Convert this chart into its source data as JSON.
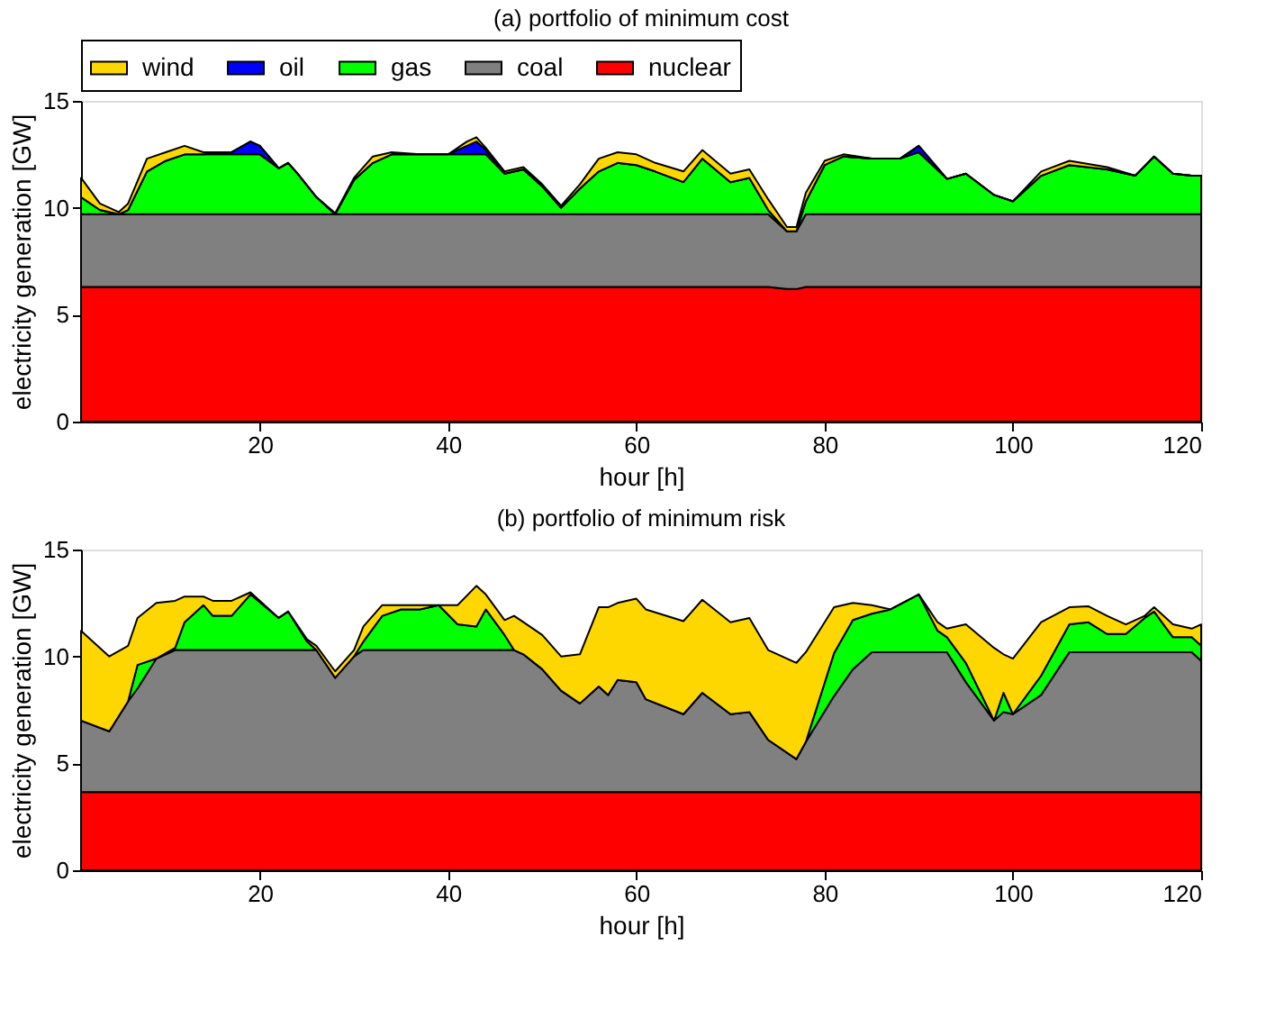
{
  "chart_data": [
    {
      "type": "area",
      "title": "(a) portfolio of minimum cost",
      "xlabel": "hour [h]",
      "ylabel": "electricity generation [GW]",
      "stacked": true,
      "legend": "top",
      "grid": false,
      "xlim": [
        1,
        120
      ],
      "xticks": [
        20,
        40,
        60,
        80,
        100,
        120
      ],
      "ylim": [
        0,
        15
      ],
      "yticks": [
        0,
        5,
        10,
        15
      ],
      "x": [
        1,
        3,
        5,
        6,
        8,
        10,
        12,
        14,
        17,
        19,
        20,
        22,
        23,
        24,
        26,
        28,
        30,
        32,
        34,
        37,
        40,
        42,
        43,
        44,
        46,
        48,
        50,
        52,
        54,
        56,
        58,
        60,
        62,
        65,
        67,
        70,
        72,
        74,
        76,
        77,
        78,
        80,
        82,
        85,
        88,
        90,
        93,
        95,
        98,
        100,
        103,
        106,
        110,
        113,
        115,
        117,
        119,
        120
      ],
      "series": [
        {
          "name": "nuclear",
          "color": "#ff0000",
          "values": [
            6.3,
            6.3,
            6.3,
            6.3,
            6.3,
            6.3,
            6.3,
            6.3,
            6.3,
            6.3,
            6.3,
            6.3,
            6.3,
            6.3,
            6.3,
            6.3,
            6.3,
            6.3,
            6.3,
            6.3,
            6.3,
            6.3,
            6.3,
            6.3,
            6.3,
            6.3,
            6.3,
            6.3,
            6.3,
            6.3,
            6.3,
            6.3,
            6.3,
            6.3,
            6.3,
            6.3,
            6.3,
            6.3,
            6.2,
            6.2,
            6.3,
            6.3,
            6.3,
            6.3,
            6.3,
            6.3,
            6.3,
            6.3,
            6.3,
            6.3,
            6.3,
            6.3,
            6.3,
            6.3,
            6.3,
            6.3,
            6.3,
            6.3
          ]
        },
        {
          "name": "coal",
          "color": "#808080",
          "values": [
            3.4,
            3.4,
            3.4,
            3.4,
            3.4,
            3.4,
            3.4,
            3.4,
            3.4,
            3.4,
            3.4,
            3.4,
            3.4,
            3.4,
            3.4,
            3.4,
            3.4,
            3.4,
            3.4,
            3.4,
            3.4,
            3.4,
            3.4,
            3.4,
            3.4,
            3.4,
            3.4,
            3.4,
            3.4,
            3.4,
            3.4,
            3.4,
            3.4,
            3.4,
            3.4,
            3.4,
            3.4,
            3.4,
            2.7,
            2.7,
            3.4,
            3.4,
            3.4,
            3.4,
            3.4,
            3.4,
            3.4,
            3.4,
            3.4,
            3.4,
            3.4,
            3.4,
            3.4,
            3.4,
            3.4,
            3.4,
            3.4,
            3.4
          ]
        },
        {
          "name": "gas",
          "color": "#00ff00",
          "values": [
            0.8,
            0.2,
            0,
            0.2,
            2.0,
            2.5,
            2.8,
            2.8,
            2.8,
            2.8,
            2.8,
            2.15,
            2.4,
            1.9,
            0.8,
            0,
            1.6,
            2.4,
            2.8,
            2.8,
            2.8,
            2.8,
            2.8,
            2.8,
            1.9,
            2.1,
            1.3,
            0.3,
            1.2,
            2.0,
            2.4,
            2.3,
            2.0,
            1.5,
            2.6,
            1.5,
            1.7,
            0.2,
            0,
            0,
            0.6,
            2.3,
            2.7,
            2.6,
            2.6,
            2.9,
            1.65,
            1.9,
            0.9,
            0.6,
            1.8,
            2.3,
            2.1,
            1.8,
            2.7,
            1.9,
            1.8,
            1.8
          ]
        },
        {
          "name": "oil",
          "color": "#0000ff",
          "values": [
            0,
            0,
            0,
            0,
            0,
            0,
            0,
            0,
            0.1,
            0.6,
            0.4,
            0,
            0,
            0,
            0,
            0,
            0,
            0,
            0,
            0,
            0,
            0.4,
            0.6,
            0.2,
            0,
            0,
            0,
            0,
            0,
            0,
            0,
            0,
            0,
            0,
            0,
            0,
            0,
            0,
            0,
            0,
            0,
            0,
            0,
            0,
            0,
            0.3,
            0,
            0,
            0,
            0,
            0,
            0,
            0,
            0,
            0,
            0,
            0,
            0
          ]
        },
        {
          "name": "wind",
          "color": "#ffd700",
          "values": [
            0.9,
            0.3,
            0.1,
            0.3,
            0.6,
            0.4,
            0.4,
            0.1,
            0,
            0,
            0,
            0,
            0,
            0,
            0,
            0.05,
            0.1,
            0.3,
            0.1,
            0,
            0,
            0.2,
            0.2,
            0.1,
            0.1,
            0.1,
            0.1,
            0.1,
            0.2,
            0.6,
            0.5,
            0.5,
            0.4,
            0.5,
            0.4,
            0.4,
            0.4,
            0.5,
            0.2,
            0.2,
            0.4,
            0.2,
            0.1,
            0,
            0,
            0,
            0,
            0,
            0,
            0,
            0.2,
            0.2,
            0.1,
            0,
            0,
            0,
            0,
            0
          ]
        }
      ]
    },
    {
      "type": "area",
      "title": "(b) portfolio of minimum risk",
      "xlabel": "hour [h]",
      "ylabel": "electricity generation [GW]",
      "stacked": true,
      "grid": false,
      "xlim": [
        1,
        120
      ],
      "xticks": [
        20,
        40,
        60,
        80,
        100,
        120
      ],
      "ylim": [
        0,
        15
      ],
      "yticks": [
        0,
        5,
        10,
        15
      ],
      "x": [
        1,
        4,
        6,
        7,
        9,
        11,
        12,
        14,
        15,
        17,
        19,
        22,
        23,
        25,
        26,
        28,
        30,
        31,
        33,
        35,
        37,
        39,
        41,
        43,
        44,
        46,
        47,
        48,
        50,
        52,
        54,
        56,
        57,
        58,
        60,
        61,
        65,
        67,
        70,
        72,
        74,
        77,
        78,
        81,
        83,
        85,
        87,
        90,
        92,
        93,
        95,
        98,
        99,
        100,
        103,
        106,
        108,
        110,
        112,
        114,
        115,
        117,
        119,
        120
      ],
      "series": [
        {
          "color": "#ff0000",
          "values": [
            3.65,
            3.65,
            3.65,
            3.65,
            3.65,
            3.65,
            3.65,
            3.65,
            3.65,
            3.65,
            3.65,
            3.65,
            3.65,
            3.65,
            3.65,
            3.65,
            3.65,
            3.65,
            3.65,
            3.65,
            3.65,
            3.65,
            3.65,
            3.65,
            3.65,
            3.65,
            3.65,
            3.65,
            3.65,
            3.65,
            3.65,
            3.65,
            3.65,
            3.65,
            3.65,
            3.65,
            3.65,
            3.65,
            3.65,
            3.65,
            3.65,
            3.65,
            3.65,
            3.65,
            3.65,
            3.65,
            3.65,
            3.65,
            3.65,
            3.65,
            3.65,
            3.65,
            3.65,
            3.65,
            3.65,
            3.65,
            3.65,
            3.65,
            3.65,
            3.65,
            3.65,
            3.65,
            3.65,
            3.65
          ]
        },
        {
          "color": "#808080",
          "values": [
            3.35,
            2.85,
            4.25,
            4.85,
            6.25,
            6.65,
            6.65,
            6.65,
            6.65,
            6.65,
            6.65,
            6.65,
            6.65,
            6.65,
            6.65,
            5.35,
            6.35,
            6.65,
            6.65,
            6.65,
            6.65,
            6.65,
            6.65,
            6.65,
            6.65,
            6.65,
            6.65,
            6.45,
            5.75,
            4.75,
            4.15,
            4.95,
            4.55,
            5.25,
            5.15,
            4.35,
            3.65,
            4.65,
            3.65,
            3.75,
            2.45,
            1.55,
            2.35,
            4.5,
            5.75,
            6.55,
            6.55,
            6.55,
            6.55,
            6.55,
            5.15,
            3.35,
            3.75,
            3.65,
            4.55,
            6.55,
            6.55,
            6.55,
            6.55,
            6.55,
            6.55,
            6.55,
            6.55,
            6.15
          ]
        },
        {
          "color": "#00ff00",
          "values": [
            0,
            0,
            0,
            1.1,
            0,
            0.1,
            1.3,
            2.1,
            1.6,
            1.6,
            2.6,
            1.5,
            1.8,
            0.4,
            0,
            0,
            0,
            0.4,
            1.6,
            1.9,
            1.9,
            2.1,
            1.2,
            1.1,
            1.9,
            0.7,
            0,
            0,
            0,
            0,
            0,
            0,
            0,
            0,
            0,
            0,
            0,
            0,
            0,
            0,
            0,
            0,
            0,
            2.0,
            2.3,
            1.8,
            2.0,
            2.7,
            1.0,
            0.7,
            0.9,
            0,
            0.9,
            0,
            0.9,
            1.3,
            1.4,
            0.85,
            0.85,
            1.6,
            1.9,
            0.7,
            0.7,
            0.7
          ]
        },
        {
          "color": "#ffd700",
          "values": [
            4.2,
            3.5,
            2.6,
            2.2,
            2.6,
            2.2,
            1.2,
            0.4,
            0.7,
            0.7,
            0.1,
            0,
            0,
            0.1,
            0.2,
            0.3,
            0.3,
            0.7,
            0.5,
            0.2,
            0.2,
            0,
            0.9,
            1.9,
            0.7,
            0.7,
            1.6,
            1.5,
            1.6,
            1.6,
            2.3,
            3.7,
            4.1,
            3.6,
            3.9,
            4.2,
            4.35,
            4.35,
            4.3,
            4.4,
            4.2,
            4.5,
            4.2,
            2.15,
            0.8,
            0.4,
            0,
            0,
            0.4,
            0.4,
            1.8,
            3.4,
            1.8,
            2.6,
            2.5,
            0.8,
            0.75,
            0.85,
            0.45,
            0.1,
            0.2,
            0.6,
            0.4,
            1.0
          ]
        }
      ]
    }
  ]
}
